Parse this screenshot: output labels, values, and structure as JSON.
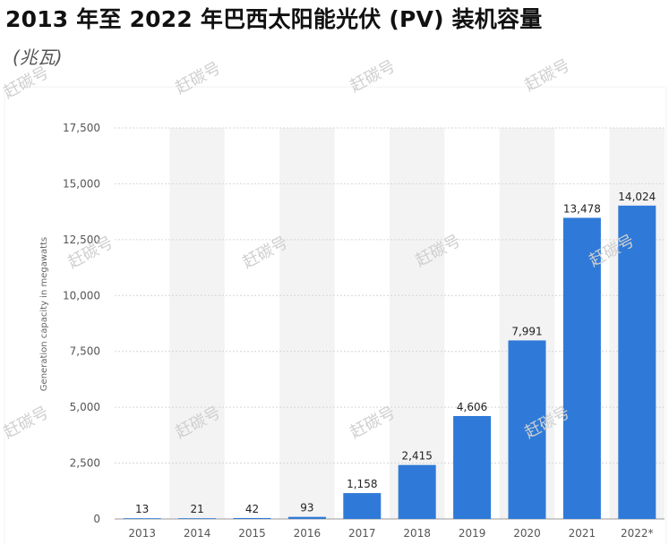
{
  "title": "2013 年至 2022 年巴西太阳能光伏 (PV) 装机容量",
  "subtitle": "(兆瓦)",
  "watermark": "赶碳号",
  "chart_data": {
    "type": "bar",
    "categories": [
      "2013",
      "2014",
      "2015",
      "2016",
      "2017",
      "2018",
      "2019",
      "2020",
      "2021",
      "2022*"
    ],
    "values": [
      13,
      21,
      42,
      93,
      1158,
      2415,
      4606,
      7991,
      13478,
      14024
    ],
    "value_labels": [
      "13",
      "21",
      "42",
      "93",
      "1,158",
      "2,415",
      "4,606",
      "7,991",
      "13,478",
      "14,024"
    ],
    "ylabel": "Generation capacity in megawatts",
    "ylim": [
      0,
      17500
    ],
    "yticks": [
      0,
      2500,
      5000,
      7500,
      10000,
      12500,
      15000,
      17500
    ],
    "ytick_labels": [
      "0",
      "2,500",
      "5,000",
      "7,500",
      "10,000",
      "12,500",
      "15,000",
      "17,500"
    ],
    "bar_color": "#2f7ad8",
    "grid": true,
    "alternating_column_shading": true
  }
}
